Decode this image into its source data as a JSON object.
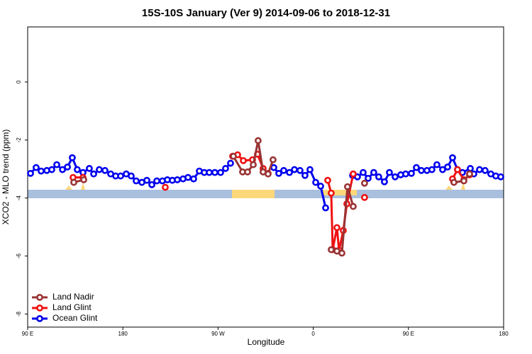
{
  "chart_data": {
    "type": "line",
    "title": "15S-10S January (Ver 9)   2014-09-06 to 2018-12-31",
    "x_label": "Longitude",
    "y_label": "XCO2 - MLO trend (ppm)",
    "xlim": [
      90,
      540
    ],
    "ylim": [
      -8.45,
      1.9
    ],
    "xticks": [
      {
        "value": 90,
        "label": "90 E"
      },
      180,
      {
        "value": 270,
        "label": "90 W"
      },
      {
        "value": 360,
        "label": "0"
      },
      {
        "value": 450,
        "label": "90 E"
      },
      {
        "value": 540,
        "label": "180"
      }
    ],
    "yticks": [
      0,
      -2,
      -4,
      -6,
      -8
    ],
    "legend": "bottom-left",
    "series": [
      {
        "name": "Land Nadir",
        "color": "#993333",
        "x": [
          133.6,
          143.0,
          null,
          284.5,
          293.2,
          297.9,
          303.3,
          307.9,
          312.6,
          317.3,
          322.0,
          null,
          377.0,
          382.4,
          387.1,
          392.4,
          397.8,
          null,
          408.5,
          null,
          493.0,
          502.4,
          507.8
        ],
        "values": [
          -3.46,
          -3.37,
          null,
          -2.56,
          -3.1,
          -3.1,
          -2.85,
          -2.02,
          -3.1,
          -3.17,
          -2.68,
          null,
          -5.78,
          -5.83,
          -5.9,
          -3.61,
          -4.29,
          null,
          -3.49,
          null,
          -3.46,
          -3.41,
          -3.17
        ]
      },
      {
        "name": "Land Glint",
        "color": "#ee1111",
        "x": [
          132.9,
          142.3,
          null,
          220.1,
          null,
          283.8,
          288.5,
          293.9,
          302.6,
          307.3,
          312.6,
          317.3,
          null,
          373.7,
          377.0,
          378.4,
          382.4,
          384.4,
          388.4,
          391.8,
          397.8,
          null,
          408.5,
          null,
          491.7,
          496.4,
          502.4,
          507.8
        ],
        "values": [
          -3.29,
          -3.29,
          null,
          -3.63,
          null,
          -2.56,
          -2.51,
          -2.71,
          -2.68,
          -2.49,
          -2.98,
          -3.15,
          null,
          -3.39,
          -3.83,
          -5.78,
          -5.02,
          -5.8,
          -5.12,
          -4.2,
          -3.17,
          null,
          -3.98,
          null,
          -3.34,
          -3.02,
          -3.37,
          -3.2
        ]
      },
      {
        "name": "Ocean Glint",
        "color": "#0000ee",
        "x": [
          92.7,
          98.0,
          102.7,
          108.1,
          112.8,
          117.5,
          122.9,
          127.6,
          132.2,
          136.9,
          142.3,
          148.3,
          152.4,
          157.7,
          163.1,
          168.5,
          173.2,
          177.9,
          183.2,
          187.9,
          192.6,
          198.0,
          202.7,
          207.4,
          212.1,
          217.4,
          222.1,
          226.8,
          231.5,
          236.9,
          241.6,
          246.9,
          252.3,
          257.0,
          261.7,
          267.0,
          272.4,
          277.1,
          281.8,
          null,
          322.7,
          327.4,
          332.1,
          337.5,
          342.2,
          347.5,
          352.2,
          356.9,
          362.3,
          367.0,
          371.7,
          null,
          397.2,
          401.8,
          407.2,
          411.9,
          417.2,
          421.9,
          427.3,
          432.0,
          437.4,
          442.7,
          447.4,
          452.8,
          457.5,
          462.2,
          467.5,
          472.2,
          476.9,
          482.3,
          487.0,
          491.7,
          496.4,
          501.1,
          508.5,
          511.8,
          517.2,
          522.5,
          527.9,
          532.6,
          537.3
        ],
        "values": [
          -3.15,
          -2.95,
          -3.07,
          -3.05,
          -3.02,
          -2.85,
          -3.02,
          -2.93,
          -2.61,
          -3.02,
          -3.12,
          -2.98,
          -3.17,
          -3.02,
          -3.05,
          -3.17,
          -3.24,
          -3.24,
          -3.17,
          -3.24,
          -3.41,
          -3.46,
          -3.39,
          -3.54,
          -3.41,
          -3.41,
          -3.37,
          -3.39,
          -3.37,
          -3.34,
          -3.29,
          -3.34,
          -3.07,
          -3.12,
          -3.12,
          -3.12,
          -3.12,
          -2.98,
          -2.8,
          null,
          -2.95,
          -3.15,
          -3.05,
          -3.12,
          -3.02,
          -3.05,
          -3.22,
          -3.02,
          -3.46,
          -3.59,
          -4.34,
          null,
          -3.22,
          -3.27,
          -3.12,
          -3.32,
          -3.12,
          -3.27,
          -3.44,
          -3.12,
          -3.27,
          -3.2,
          -3.17,
          -3.15,
          -2.95,
          -3.05,
          -3.05,
          -3.02,
          -2.85,
          -3.02,
          -2.93,
          -2.61,
          -3.02,
          -3.12,
          -2.98,
          -3.17,
          -3.02,
          -3.05,
          -3.17,
          -3.24,
          -3.27
        ]
      }
    ]
  }
}
